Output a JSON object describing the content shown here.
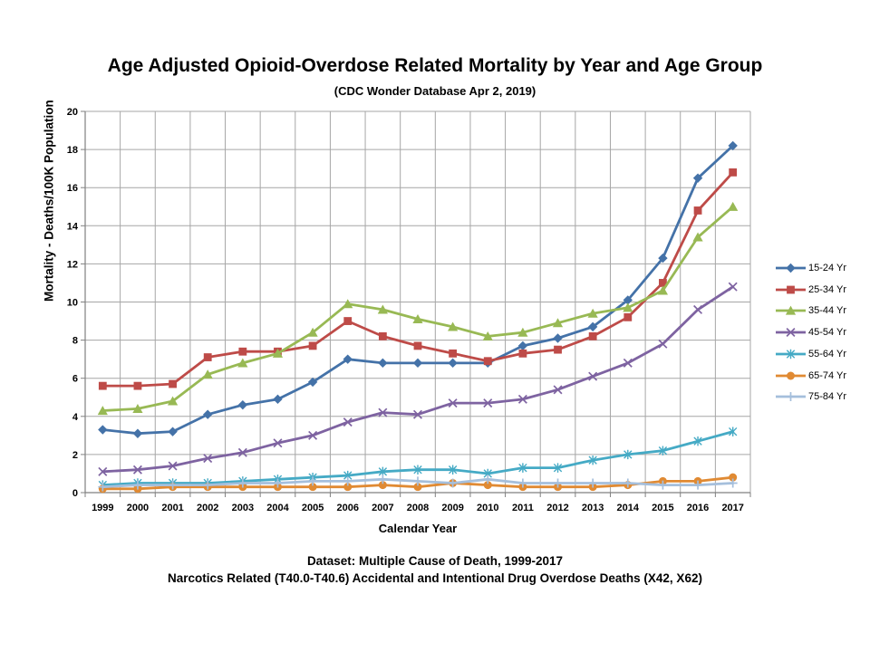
{
  "chart_data": {
    "type": "line",
    "title": "Age Adjusted Opioid-Overdose Related Mortality by Year and Age Group",
    "subtitle": "(CDC Wonder Database Apr 2, 2019)",
    "xlabel": "Calendar Year",
    "ylabel": "Mortality - Deaths/100K Population",
    "ylim": [
      0,
      20
    ],
    "ytick_step": 2,
    "grid": true,
    "legend_position": "right",
    "categories": [
      "1999",
      "2000",
      "2001",
      "2002",
      "2003",
      "2004",
      "2005",
      "2006",
      "2007",
      "2008",
      "2009",
      "2010",
      "2011",
      "2012",
      "2013",
      "2014",
      "2015",
      "2016",
      "2017"
    ],
    "series": [
      {
        "name": "15-24 Yr",
        "color": "#4472A8",
        "marker": "diamond",
        "values": [
          3.3,
          3.1,
          3.2,
          4.1,
          4.6,
          4.9,
          5.8,
          7.0,
          6.8,
          6.8,
          6.8,
          6.8,
          7.7,
          8.1,
          8.7,
          10.1,
          12.3,
          16.5,
          18.2
        ]
      },
      {
        "name": "25-34 Yr",
        "color": "#BE4B48",
        "marker": "square",
        "values": [
          5.6,
          5.6,
          5.7,
          7.1,
          7.4,
          7.4,
          7.7,
          9.0,
          8.2,
          7.7,
          7.3,
          6.9,
          7.3,
          7.5,
          8.2,
          9.2,
          11.0,
          14.8,
          16.8
        ]
      },
      {
        "name": "35-44 Yr",
        "color": "#98B954",
        "marker": "triangle",
        "values": [
          4.3,
          4.4,
          4.8,
          6.2,
          6.8,
          7.3,
          8.4,
          9.9,
          9.6,
          9.1,
          8.7,
          8.2,
          8.4,
          8.9,
          9.4,
          9.7,
          10.6,
          13.4,
          15.0
        ]
      },
      {
        "name": "45-54 Yr",
        "color": "#7E63A1",
        "marker": "x",
        "values": [
          1.1,
          1.2,
          1.4,
          1.8,
          2.1,
          2.6,
          3.0,
          3.7,
          4.2,
          4.1,
          4.7,
          4.7,
          4.9,
          5.4,
          6.1,
          6.8,
          7.8,
          9.6,
          10.8
        ]
      },
      {
        "name": "55-64 Yr",
        "color": "#45AAC5",
        "marker": "asterisk",
        "values": [
          0.4,
          0.5,
          0.5,
          0.5,
          0.6,
          0.7,
          0.8,
          0.9,
          1.1,
          1.2,
          1.2,
          1.0,
          1.3,
          1.3,
          1.7,
          2.0,
          2.2,
          2.7,
          3.2
        ]
      },
      {
        "name": "65-74 Yr",
        "color": "#E08A33",
        "marker": "circle",
        "values": [
          0.2,
          0.2,
          0.3,
          0.3,
          0.3,
          0.3,
          0.3,
          0.3,
          0.4,
          0.3,
          0.5,
          0.4,
          0.3,
          0.3,
          0.3,
          0.4,
          0.6,
          0.6,
          0.8
        ]
      },
      {
        "name": "75-84 Yr",
        "color": "#A5BFDC",
        "marker": "plus",
        "values": [
          0.3,
          0.4,
          0.4,
          0.4,
          0.5,
          0.5,
          0.6,
          0.6,
          0.7,
          0.6,
          0.5,
          0.7,
          0.5,
          0.5,
          0.5,
          0.5,
          0.4,
          0.4,
          0.5
        ]
      }
    ],
    "annotations": [
      "Dataset: Multiple Cause of Death, 1999-2017",
      "Narcotics Related (T40.0-T40.6) Accidental and Intentional Drug Overdose Deaths (X42, X62)"
    ]
  }
}
